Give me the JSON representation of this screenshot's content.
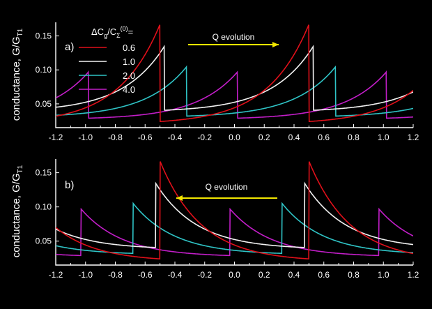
{
  "colors": {
    "background": "#000000",
    "axes": "#ffffff",
    "series_0_6": "#e0101a",
    "series_1_0": "#f2f2f2",
    "series_2_0": "#2fc4c6",
    "series_4_0": "#c21ec8",
    "arrow": "#f2e600"
  },
  "chart_data": [
    {
      "type": "line",
      "panel": "a)",
      "ylabel": "conductance, G/G",
      "ylabel_sub": "T1",
      "xlim": [
        -1.2,
        1.2
      ],
      "ylim": [
        0.015,
        0.17
      ],
      "xticks": [
        "-1.2",
        "-1.0",
        "-0.8",
        "-0.6",
        "-0.4",
        "-0.2",
        "0.0",
        "0.2",
        "0.4",
        "0.6",
        "0.8",
        "1.0",
        "1.2"
      ],
      "yticks": [
        "0.05",
        "0.10",
        "0.15"
      ],
      "legend": {
        "title": "ΔC_g/C_Σ^(0) =",
        "placement": "top-left",
        "entries": [
          "0.6",
          "1.0",
          "2.0",
          "4.0"
        ]
      },
      "annotation": {
        "text": "Q evolution",
        "direction": "right"
      },
      "series": [
        {
          "name": "0.6",
          "color_key": "series_0_6",
          "jumps": [
            -0.5,
            0.5
          ],
          "peak": 0.167,
          "tail": 0.02
        },
        {
          "name": "1.0",
          "color_key": "series_1_0",
          "jumps": [
            -0.47,
            0.53
          ],
          "peak": 0.135,
          "tail": 0.038
        },
        {
          "name": "2.0",
          "color_key": "series_2_0",
          "jumps": [
            -0.32,
            0.68
          ],
          "peak": 0.105,
          "tail": 0.03
        },
        {
          "name": "4.0",
          "color_key": "series_4_0",
          "jumps": [
            -0.98,
            0.03,
            1.03
          ],
          "peak": 0.097,
          "tail": 0.027
        }
      ]
    },
    {
      "type": "line",
      "panel": "b)",
      "ylabel": "conductance, G/G",
      "ylabel_sub": "T1",
      "xlim": [
        -1.2,
        1.2
      ],
      "ylim": [
        0.015,
        0.17
      ],
      "xticks": [
        "-1.2",
        "-1.0",
        "-0.8",
        "-0.6",
        "-0.4",
        "-0.2",
        "0.0",
        "0.2",
        "0.4",
        "0.6",
        "0.8",
        "1.0",
        "1.2"
      ],
      "yticks": [
        "0.05",
        "0.10",
        "0.15"
      ],
      "annotation": {
        "text": "Q evolution",
        "direction": "left"
      },
      "series": [
        {
          "name": "0.6",
          "color_key": "series_0_6",
          "jumps": [
            -0.5,
            0.5
          ],
          "peak": 0.167,
          "tail": 0.02
        },
        {
          "name": "1.0",
          "color_key": "series_1_0",
          "jumps": [
            -0.53,
            0.47
          ],
          "peak": 0.135,
          "tail": 0.038
        },
        {
          "name": "2.0",
          "color_key": "series_2_0",
          "jumps": [
            -0.68,
            0.32
          ],
          "peak": 0.105,
          "tail": 0.03
        },
        {
          "name": "4.0",
          "color_key": "series_4_0",
          "jumps": [
            -1.03,
            -0.03,
            0.97
          ],
          "peak": 0.097,
          "tail": 0.027
        }
      ]
    }
  ]
}
